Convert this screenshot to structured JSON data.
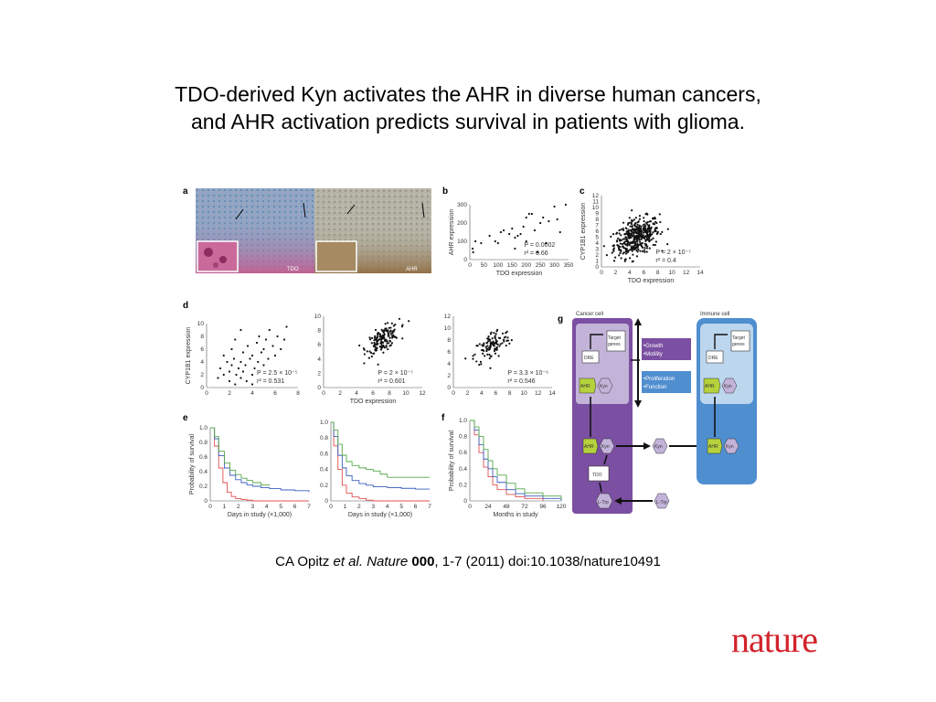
{
  "title": {
    "line1": "TDO-derived Kyn activates the AHR in diverse human cancers,",
    "line2": "and AHR activation predicts survival in patients with glioma."
  },
  "citation": {
    "author": "CA Opitz ",
    "etal": "et al.",
    "journal": " Nature ",
    "volume": "000",
    "rest": ", 1-7 (2011) doi:10.1038/nature10491"
  },
  "logo": "nature",
  "figure": {
    "panel_a": {
      "label": "a",
      "left_tag": "TDO",
      "right_tag": "AHR"
    },
    "panel_b": {
      "label": "b"
    },
    "panel_c": {
      "label": "c"
    },
    "panel_d": {
      "label": "d"
    },
    "panel_e": {
      "label": "e"
    },
    "panel_f": {
      "label": "f"
    },
    "panel_g": {
      "label": "g"
    },
    "diagram": {
      "cancer_cell": "Cancer cell",
      "immune_cell": "Immune cell",
      "target_genes_1": "Target",
      "target_genes_2": "genes",
      "dre": "DRE",
      "ahr": "AHR",
      "kyn": "Kyn",
      "tdo": "TDO",
      "ltrp": "L-Trp",
      "box1_line1": "•Growth",
      "box1_line2": "•Motility",
      "box2_line1": "•Proliferation",
      "box2_line2": "•Function"
    }
  },
  "chart_data": [
    {
      "panel": "b",
      "type": "scatter",
      "xlabel": "TDO expression",
      "ylabel": "AHR expression",
      "xlim": [
        0,
        350
      ],
      "ylim": [
        0,
        300
      ],
      "xticks": [
        "0",
        "50",
        "100",
        "150",
        "200",
        "250",
        "300",
        "350"
      ],
      "yticks": [
        "0",
        "100",
        "200",
        "300"
      ],
      "stats": [
        "P = 0.0002",
        "r² = 0.66"
      ],
      "points": [
        [
          10,
          60
        ],
        [
          12,
          40
        ],
        [
          20,
          100
        ],
        [
          40,
          90
        ],
        [
          70,
          130
        ],
        [
          90,
          100
        ],
        [
          100,
          90
        ],
        [
          110,
          150
        ],
        [
          120,
          160
        ],
        [
          140,
          140
        ],
        [
          150,
          170
        ],
        [
          160,
          120
        ],
        [
          170,
          130
        ],
        [
          180,
          140
        ],
        [
          190,
          180
        ],
        [
          200,
          230
        ],
        [
          210,
          250
        ],
        [
          220,
          250
        ],
        [
          230,
          160
        ],
        [
          240,
          40
        ],
        [
          250,
          200
        ],
        [
          260,
          230
        ],
        [
          270,
          90
        ],
        [
          280,
          210
        ],
        [
          300,
          290
        ],
        [
          310,
          220
        ],
        [
          320,
          150
        ],
        [
          340,
          300
        ],
        [
          160,
          60
        ],
        [
          200,
          100
        ]
      ]
    },
    {
      "panel": "c",
      "type": "scatter",
      "xlabel": "TDO expression",
      "ylabel": "CYP1B1 expression",
      "xlim": [
        0,
        14
      ],
      "ylim": [
        0,
        12
      ],
      "xticks": [
        "0",
        "2",
        "4",
        "6",
        "8",
        "10",
        "12",
        "14"
      ],
      "yticks": [
        "0",
        "1",
        "2",
        "3",
        "4",
        "5",
        "6",
        "7",
        "8",
        "9",
        "10",
        "11",
        "12"
      ],
      "stats": [
        "P = 2 × 10⁻⁷",
        "r² = 0.4"
      ],
      "cloud": {
        "n": 420,
        "cx": 5.0,
        "cy": 5.0,
        "sx": 1.6,
        "sy": 1.6,
        "rho": 0.4
      }
    },
    {
      "panel": "d1",
      "type": "scatter",
      "xlabel": "",
      "ylabel": "CYP1B1 expression",
      "xlim": [
        0,
        8
      ],
      "ylim": [
        0,
        10
      ],
      "xticks": [
        "0",
        "2",
        "4",
        "6",
        "8"
      ],
      "yticks": [
        "0",
        "2",
        "4",
        "6",
        "8",
        "10"
      ],
      "stats": [
        "P = 2.5 × 10⁻⁵",
        "r² = 0.531"
      ],
      "points": [
        [
          1.0,
          1.5
        ],
        [
          1.2,
          3.0
        ],
        [
          1.5,
          2.0
        ],
        [
          1.8,
          4.0
        ],
        [
          2.0,
          1.0
        ],
        [
          2.0,
          2.5
        ],
        [
          2.2,
          3.5
        ],
        [
          2.4,
          4.5
        ],
        [
          2.5,
          0.5
        ],
        [
          2.6,
          2.0
        ],
        [
          2.8,
          3.0
        ],
        [
          3.0,
          1.5
        ],
        [
          3.0,
          4.0
        ],
        [
          3.2,
          2.5
        ],
        [
          3.2,
          5.5
        ],
        [
          3.4,
          3.5
        ],
        [
          3.5,
          1.0
        ],
        [
          3.6,
          6.5
        ],
        [
          3.8,
          4.5
        ],
        [
          4.0,
          2.0
        ],
        [
          4.0,
          5.0
        ],
        [
          4.2,
          3.0
        ],
        [
          4.4,
          7.0
        ],
        [
          4.5,
          4.0
        ],
        [
          4.6,
          8.0
        ],
        [
          4.8,
          5.5
        ],
        [
          5.0,
          3.5
        ],
        [
          5.0,
          6.0
        ],
        [
          5.2,
          7.5
        ],
        [
          5.4,
          4.5
        ],
        [
          5.5,
          9.0
        ],
        [
          5.8,
          6.5
        ],
        [
          6.0,
          5.0
        ],
        [
          6.2,
          8.0
        ],
        [
          6.5,
          6.0
        ],
        [
          7.0,
          9.5
        ],
        [
          2.5,
          7.5
        ],
        [
          3.0,
          9.0
        ],
        [
          1.5,
          5.0
        ],
        [
          4.0,
          0.5
        ],
        [
          6.8,
          7.5
        ],
        [
          2.2,
          6.0
        ]
      ]
    },
    {
      "panel": "d2",
      "type": "scatter",
      "xlabel": "TDO expression",
      "ylabel": "",
      "xlim": [
        0,
        12
      ],
      "ylim": [
        0,
        10
      ],
      "xticks": [
        "0",
        "2",
        "4",
        "6",
        "8",
        "10",
        "12"
      ],
      "yticks": [
        "0",
        "2",
        "4",
        "6",
        "8",
        "10"
      ],
      "stats": [
        "P = 2 × 10⁻⁷",
        "r² = 0.601"
      ],
      "cloud": {
        "n": 160,
        "cx": 7.2,
        "cy": 6.8,
        "sx": 1.0,
        "sy": 1.0,
        "rho": 0.6
      }
    },
    {
      "panel": "d3",
      "type": "scatter",
      "xlabel": "",
      "ylabel": "",
      "xlim": [
        0,
        14
      ],
      "ylim": [
        0,
        12
      ],
      "xticks": [
        "0",
        "2",
        "4",
        "6",
        "8",
        "10",
        "12",
        "14"
      ],
      "yticks": [
        "0",
        "2",
        "4",
        "6",
        "8",
        "10",
        "12"
      ],
      "stats": [
        "P = 3.3 × 10⁻⁶",
        "r² = 0.546"
      ],
      "cloud": {
        "n": 110,
        "cx": 5.5,
        "cy": 7.0,
        "sx": 1.3,
        "sy": 1.5,
        "rho": 0.55
      }
    },
    {
      "panel": "e1",
      "type": "line",
      "xlabel": "Days in study (×1,000)",
      "ylabel": "Probability of survival",
      "xlim": [
        0,
        7
      ],
      "ylim": [
        0,
        1.0
      ],
      "xticks": [
        "0",
        "1",
        "2",
        "3",
        "4",
        "5",
        "6",
        "7"
      ],
      "yticks": [
        "0",
        "0.2",
        "0.4",
        "0.6",
        "0.8",
        "1.0"
      ],
      "series": [
        {
          "color": "#e05050",
          "x": [
            0,
            0.3,
            0.6,
            0.9,
            1.2,
            1.5,
            1.8,
            2.2,
            2.6,
            3.0,
            7.0
          ],
          "y": [
            1.0,
            0.75,
            0.45,
            0.25,
            0.12,
            0.06,
            0.03,
            0.02,
            0.01,
            0.0,
            0.0
          ]
        },
        {
          "color": "#3a5fbf",
          "x": [
            0,
            0.3,
            0.6,
            1.0,
            1.4,
            1.8,
            2.2,
            2.6,
            3.0,
            3.6,
            4.2,
            5.0,
            6.0,
            7.0
          ],
          "y": [
            1.0,
            0.85,
            0.62,
            0.45,
            0.35,
            0.29,
            0.25,
            0.22,
            0.2,
            0.18,
            0.17,
            0.15,
            0.14,
            0.12
          ]
        },
        {
          "color": "#55a84a",
          "x": [
            0,
            0.3,
            0.6,
            1.0,
            1.4,
            1.8,
            2.2,
            2.6,
            3.0,
            3.6,
            4.2
          ],
          "y": [
            1.0,
            0.88,
            0.68,
            0.52,
            0.42,
            0.36,
            0.31,
            0.28,
            0.25,
            0.22,
            0.21
          ]
        }
      ]
    },
    {
      "panel": "e2",
      "type": "line",
      "xlabel": "Days in study (×1,000)",
      "ylabel": "",
      "xlim": [
        0,
        7
      ],
      "ylim": [
        0,
        1.0
      ],
      "xticks": [
        "0",
        "1",
        "2",
        "3",
        "4",
        "5",
        "6",
        "7"
      ],
      "yticks": [
        "0",
        "0.2",
        "0.4",
        "0.6",
        "0.8",
        "1.0"
      ],
      "series": [
        {
          "color": "#e05050",
          "x": [
            0,
            0.2,
            0.5,
            0.8,
            1.1,
            1.5,
            2.0,
            2.5,
            3.0,
            7.0
          ],
          "y": [
            1.0,
            0.7,
            0.4,
            0.2,
            0.1,
            0.05,
            0.03,
            0.01,
            0.0,
            0.0
          ]
        },
        {
          "color": "#3a5fbf",
          "x": [
            0,
            0.2,
            0.5,
            0.8,
            1.1,
            1.5,
            2.0,
            2.5,
            3.0,
            4.0,
            5.0,
            6.0,
            7.0
          ],
          "y": [
            1.0,
            0.82,
            0.58,
            0.42,
            0.32,
            0.26,
            0.22,
            0.2,
            0.18,
            0.17,
            0.16,
            0.15,
            0.15
          ]
        },
        {
          "color": "#55a84a",
          "x": [
            0,
            0.2,
            0.5,
            0.8,
            1.1,
            1.5,
            2.0,
            2.5,
            3.0,
            3.5,
            4.0,
            5.0,
            6.0,
            7.0
          ],
          "y": [
            1.0,
            0.9,
            0.72,
            0.58,
            0.5,
            0.45,
            0.42,
            0.4,
            0.38,
            0.34,
            0.3,
            0.3,
            0.3,
            0.3
          ]
        }
      ]
    },
    {
      "panel": "f",
      "type": "line",
      "xlabel": "Months in study",
      "ylabel": "Probability of survival",
      "xlim": [
        0,
        120
      ],
      "ylim": [
        0,
        1.0
      ],
      "xticks": [
        "0",
        "24",
        "48",
        "72",
        "96",
        "120"
      ],
      "yticks": [
        "0",
        "0.2",
        "0.4",
        "0.6",
        "0.8",
        "1.0"
      ],
      "series": [
        {
          "color": "#e05050",
          "x": [
            0,
            6,
            12,
            18,
            24,
            30,
            36,
            48,
            60,
            72,
            96
          ],
          "y": [
            1.0,
            0.82,
            0.6,
            0.42,
            0.3,
            0.2,
            0.14,
            0.08,
            0.05,
            0.03,
            0.0
          ]
        },
        {
          "color": "#3a5fbf",
          "x": [
            0,
            6,
            12,
            18,
            24,
            30,
            36,
            48,
            60,
            72,
            96,
            120
          ],
          "y": [
            1.0,
            0.88,
            0.7,
            0.52,
            0.4,
            0.3,
            0.23,
            0.14,
            0.09,
            0.06,
            0.03,
            0.0
          ]
        },
        {
          "color": "#55a84a",
          "x": [
            0,
            6,
            12,
            18,
            24,
            30,
            36,
            48,
            60,
            72,
            96,
            120
          ],
          "y": [
            1.0,
            0.92,
            0.8,
            0.64,
            0.5,
            0.4,
            0.32,
            0.22,
            0.15,
            0.1,
            0.06,
            0.02
          ]
        }
      ]
    }
  ],
  "colors": {
    "purple": "#7b4fa2",
    "purple_light": "#c3b3d9",
    "blue": "#4f8ecf",
    "blue_light": "#bcd6ee",
    "green": "#b5d23c",
    "logo": "#d2232a"
  }
}
